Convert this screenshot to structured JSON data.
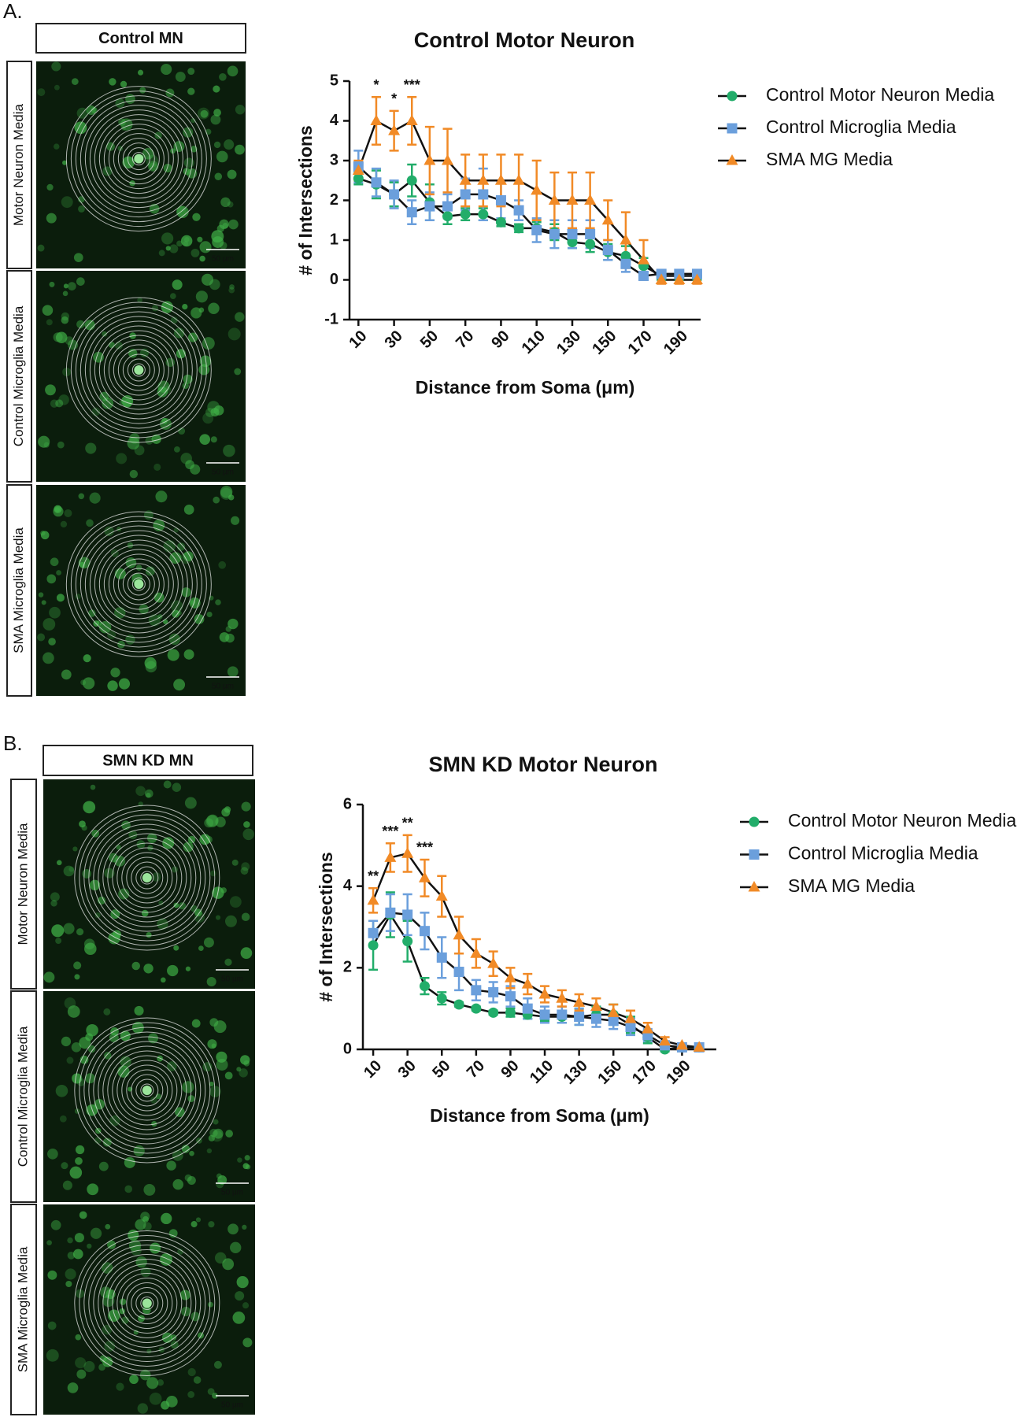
{
  "panels": [
    {
      "label": "A.",
      "header": "Control MN",
      "rows": [
        "Motor Neuron Media",
        "Control Microglia Media",
        "SMA Microglia Media"
      ],
      "scale_bar": "50 µm"
    },
    {
      "label": "B.",
      "header": "SMN KD MN",
      "rows": [
        "Motor Neuron Media",
        "Control Microglia Media",
        "SMA Microglia Media"
      ],
      "scale_bar": "50 µm"
    }
  ],
  "chart_data": [
    {
      "type": "line",
      "title": "Control Motor Neuron",
      "xlabel": "Distance from Soma (μm)",
      "ylabel": "# of Intersections",
      "x": [
        10,
        20,
        30,
        40,
        50,
        60,
        70,
        80,
        90,
        100,
        110,
        120,
        130,
        140,
        150,
        160,
        170,
        180,
        190,
        200
      ],
      "xlim": [
        5,
        202
      ],
      "xticks": [
        10,
        30,
        50,
        70,
        90,
        110,
        130,
        150,
        170,
        190
      ],
      "ylim": [
        -1,
        5
      ],
      "yticks": [
        -1,
        0,
        1,
        2,
        3,
        4,
        5
      ],
      "legend": "right",
      "series": [
        {
          "name": "Control Motor Neuron Media",
          "color": "#22ad6a",
          "marker": "circle",
          "values": [
            2.55,
            2.4,
            2.15,
            2.5,
            1.95,
            1.6,
            1.65,
            1.65,
            1.45,
            1.3,
            1.3,
            1.2,
            0.95,
            0.9,
            0.7,
            0.6,
            0.35,
            0.1,
            0.1,
            0.1
          ],
          "errors": [
            0.15,
            0.35,
            0.3,
            0.4,
            0.45,
            0.2,
            0.15,
            0.15,
            0.1,
            0.1,
            0.15,
            0.2,
            0.15,
            0.2,
            0.2,
            0.25,
            0.2,
            0.1,
            0.1,
            0.1
          ]
        },
        {
          "name": "Control Microglia Media",
          "color": "#6b9fdc",
          "marker": "square",
          "values": [
            2.85,
            2.45,
            2.15,
            1.7,
            1.85,
            1.85,
            2.15,
            2.15,
            2.0,
            1.75,
            1.25,
            1.15,
            1.15,
            1.15,
            0.75,
            0.4,
            0.1,
            0.15,
            0.15,
            0.15
          ],
          "errors": [
            0.4,
            0.35,
            0.35,
            0.3,
            0.35,
            0.3,
            0.4,
            0.65,
            0.45,
            0.25,
            0.3,
            0.35,
            0.35,
            0.35,
            0.25,
            0.2,
            0.1,
            0.1,
            0.1,
            0.1
          ]
        },
        {
          "name": "SMA MG Media",
          "color": "#f18a26",
          "marker": "triangle",
          "values": [
            2.75,
            4.0,
            3.75,
            4.0,
            3.0,
            3.0,
            2.5,
            2.5,
            2.5,
            2.5,
            2.25,
            2.0,
            2.0,
            2.0,
            1.5,
            1.0,
            0.5,
            0.0,
            0.0,
            0.0
          ],
          "errors": [
            0.25,
            0.6,
            0.5,
            0.6,
            0.85,
            0.8,
            0.65,
            0.65,
            0.65,
            0.65,
            0.75,
            0.7,
            0.7,
            0.7,
            0.5,
            0.7,
            0.5,
            0.1,
            0.1,
            0.1
          ]
        }
      ],
      "annotations": [
        {
          "text": "*",
          "x": 20
        },
        {
          "text": "*",
          "x": 30
        },
        {
          "text": "***",
          "x": 40
        }
      ]
    },
    {
      "type": "line",
      "title": "SMN KD Motor Neuron",
      "xlabel": "Distance from Soma (μm)",
      "ylabel": "# of Intersections",
      "x": [
        10,
        20,
        30,
        40,
        50,
        60,
        70,
        80,
        90,
        100,
        110,
        120,
        130,
        140,
        150,
        160,
        170,
        180,
        190,
        200
      ],
      "xlim": [
        4,
        210
      ],
      "xticks": [
        10,
        30,
        50,
        70,
        90,
        110,
        130,
        150,
        170,
        190
      ],
      "ylim": [
        0,
        6
      ],
      "yticks": [
        0,
        2,
        4,
        6
      ],
      "legend": "right",
      "series": [
        {
          "name": "Control Motor Neuron Media",
          "color": "#22ad6a",
          "marker": "circle",
          "values": [
            2.55,
            3.3,
            2.65,
            1.55,
            1.25,
            1.1,
            1.0,
            0.9,
            0.9,
            0.85,
            0.8,
            0.8,
            0.8,
            0.85,
            0.85,
            0.6,
            0.3,
            0.0,
            0.05,
            0.05
          ],
          "errors": [
            0.6,
            0.55,
            0.5,
            0.2,
            0.15,
            0.05,
            0.05,
            0.05,
            0.1,
            0.1,
            0.1,
            0.15,
            0.2,
            0.2,
            0.25,
            0.2,
            0.15,
            0.05,
            0.05,
            0.05
          ]
        },
        {
          "name": "Control Microglia Media",
          "color": "#6b9fdc",
          "marker": "square",
          "values": [
            2.85,
            3.35,
            3.3,
            2.9,
            2.25,
            1.9,
            1.45,
            1.4,
            1.3,
            1.0,
            0.85,
            0.85,
            0.8,
            0.75,
            0.7,
            0.55,
            0.35,
            0.1,
            0.05,
            0.05
          ],
          "errors": [
            0.3,
            0.45,
            0.5,
            0.45,
            0.5,
            0.45,
            0.25,
            0.25,
            0.25,
            0.25,
            0.2,
            0.2,
            0.2,
            0.2,
            0.2,
            0.2,
            0.15,
            0.1,
            0.05,
            0.05
          ]
        },
        {
          "name": "SMA MG Media",
          "color": "#f18a26",
          "marker": "triangle",
          "values": [
            3.65,
            4.7,
            4.8,
            4.2,
            3.75,
            2.8,
            2.35,
            2.1,
            1.75,
            1.6,
            1.35,
            1.25,
            1.15,
            1.05,
            0.9,
            0.75,
            0.5,
            0.2,
            0.1,
            0.05
          ],
          "errors": [
            0.3,
            0.35,
            0.45,
            0.45,
            0.5,
            0.45,
            0.35,
            0.3,
            0.25,
            0.25,
            0.2,
            0.2,
            0.2,
            0.2,
            0.2,
            0.2,
            0.15,
            0.1,
            0.05,
            0.05
          ]
        }
      ],
      "annotations": [
        {
          "text": "**",
          "x": 10
        },
        {
          "text": "***",
          "x": 20
        },
        {
          "text": "**",
          "x": 30
        },
        {
          "text": "***",
          "x": 40
        }
      ]
    }
  ]
}
